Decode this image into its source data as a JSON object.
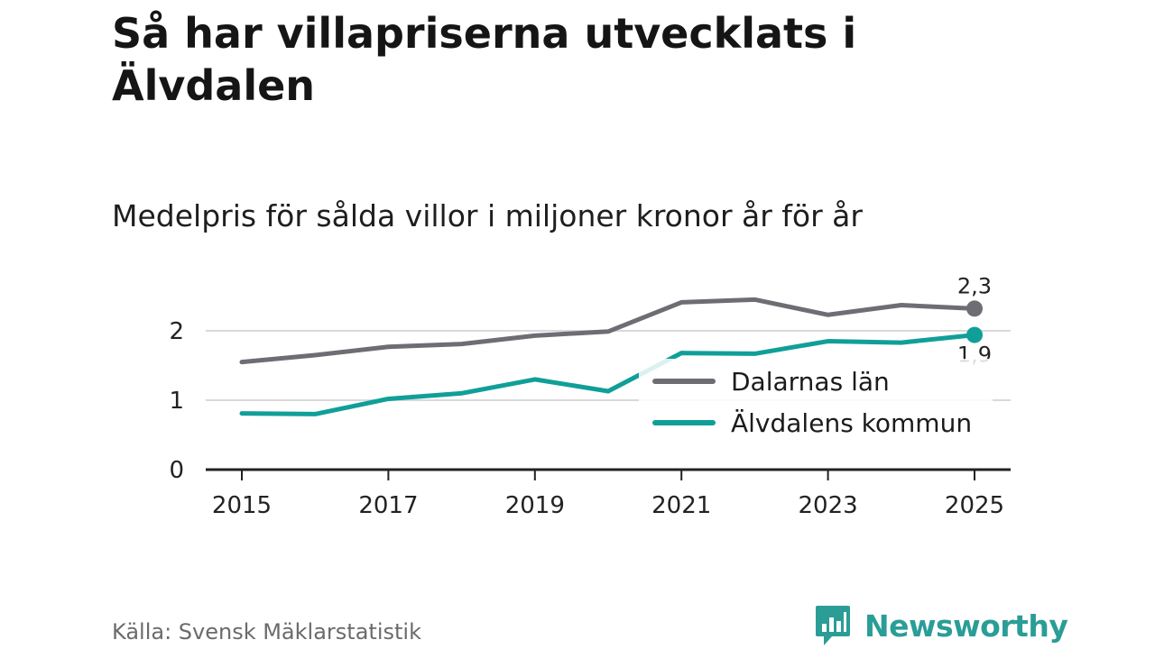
{
  "header": {
    "title": "Så har villapriserna utvecklats i Älvdalen",
    "subtitle": "Medelpris för sålda villor i miljoner kronor år för år"
  },
  "footer": {
    "source": "Källa: Svensk Mäklarstatistik",
    "brand": "Newsworthy",
    "brand_icon": "bar-chart-speech-bubble-icon"
  },
  "colors": {
    "dalarna": "#6e6d73",
    "alvdalen": "#109f98",
    "grid": "#d9d9d9",
    "axis": "#222222",
    "brand": "#2a9d96"
  },
  "chart_data": {
    "type": "line",
    "title": "Så har villapriserna utvecklats i Älvdalen",
    "subtitle": "Medelpris för sålda villor i miljoner kronor år för år",
    "xlabel": "",
    "ylabel": "",
    "x": [
      2015,
      2016,
      2017,
      2018,
      2019,
      2020,
      2021,
      2022,
      2023,
      2024,
      2025
    ],
    "x_ticks": [
      "2015",
      "2017",
      "2019",
      "2021",
      "2023",
      "2025"
    ],
    "y_ticks": [
      "0",
      "1",
      "2"
    ],
    "ylim": [
      0,
      2.6
    ],
    "grid": true,
    "legend_position": "right",
    "series": [
      {
        "name": "Dalarnas län",
        "values": [
          1.55,
          1.65,
          1.77,
          1.81,
          1.93,
          1.99,
          2.41,
          2.45,
          2.23,
          2.37,
          2.32
        ],
        "end_label": "2,3"
      },
      {
        "name": "Älvdalens kommun",
        "values": [
          0.81,
          0.8,
          1.02,
          1.1,
          1.3,
          1.13,
          1.68,
          1.67,
          1.85,
          1.83,
          1.94
        ],
        "end_label": "1,9"
      }
    ]
  }
}
